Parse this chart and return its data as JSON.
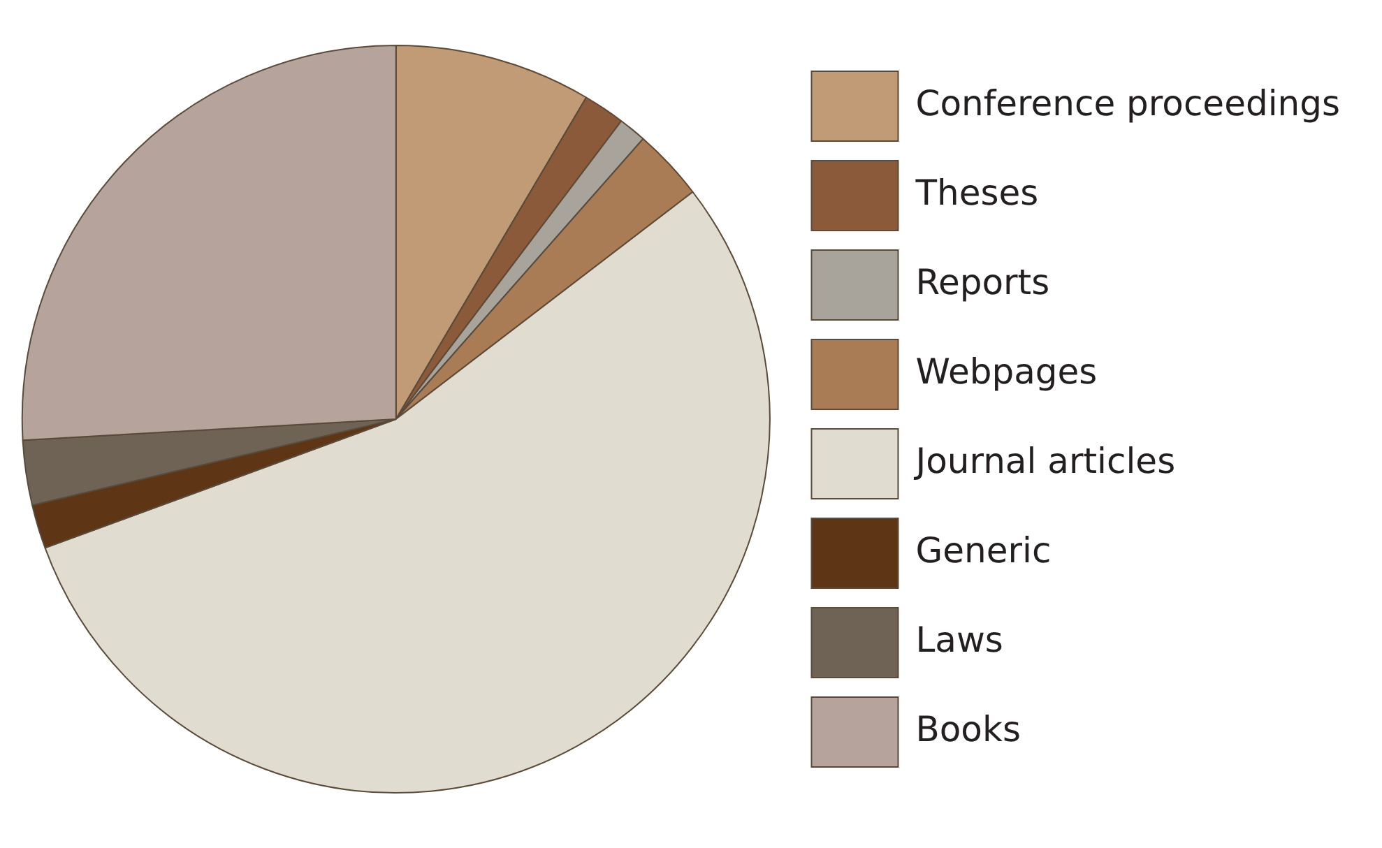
{
  "chart_data": {
    "type": "pie",
    "categories": [
      "Conference proceedings",
      "Theses",
      "Reports",
      "Webpages",
      "Journal articles",
      "Generic",
      "Laws",
      "Books"
    ],
    "values": [
      8.5,
      1.8,
      1.2,
      3.1,
      54.8,
      1.9,
      2.8,
      25.9
    ],
    "colors": [
      "#c19a76",
      "#8b5a3a",
      "#a8a49c",
      "#a97c55",
      "#e0dcd0",
      "#5e3515",
      "#6e6355",
      "#b6a49c"
    ],
    "legend": "right"
  }
}
